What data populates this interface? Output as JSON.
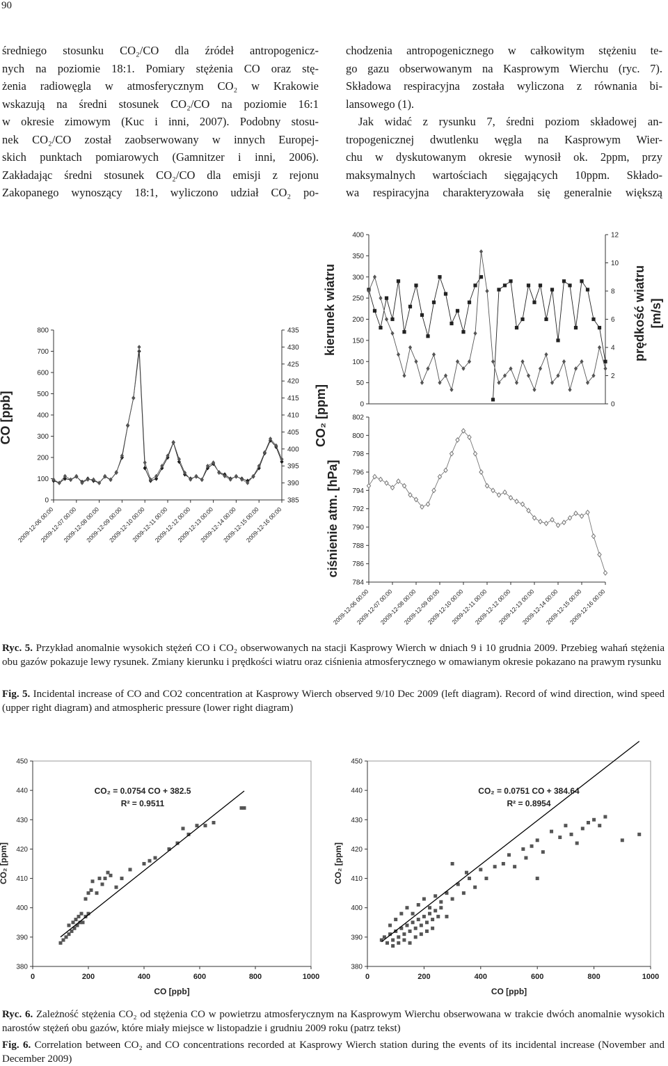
{
  "page_number": "90",
  "left_column": [
    "średniego stosunku CO₂/CO dla źródeł antropogenicz-",
    "nych na poziomie 18:1. Pomiary stężenia CO oraz stę-",
    "żenia radiowęgla w atmosferycznym CO₂ w Krakowie",
    "wskazują na średni stosunek CO₂/CO na poziomie 16:1",
    "w okresie zimowym (Kuc i inni, 2007). Podobny stosu-",
    "nek CO₂/CO został zaobserwowany w innych Europej-",
    "skich punktach pomiarowych (Gamnitzer i inni, 2006).",
    "Zakładając średni stosunek CO₂/CO dla emisji z rejonu",
    "Zakopanego wynoszący 18:1, wyliczono udział CO₂ po-"
  ],
  "right_column": [
    "chodzenia antropogenicznego w całkowitym stężeniu te-",
    "go gazu obserwowanym na Kasprowym Wierchu (ryc. 7).",
    "Składowa respiracyjna została wyliczona z równania bi-",
    "lansowego (1).",
    "Jak widać z rysunku 7, średni poziom składowej an-",
    "tropogenicznej dwutlenku węgla na Kasprowym Wier-",
    "chu w dyskutowanym okresie wynosił ok. 2ppm, przy",
    "maksymalnych wartościach sięgających 10ppm. Składo-",
    "wa respiracyjna charakteryzowała się generalnie większą"
  ],
  "figure5": {
    "pl_label": "Ryc. 5.",
    "pl_text": "Przykład anomalnie wysokich stężeń CO i CO₂ obserwowanych na stacji Kasprowy Wierch w dniach 9 i 10 grudnia 2009. Przebieg wahań stężenia obu gazów pokazuje lewy rysunek. Zmiany kierunku i prędkości wiatru oraz ciśnienia atmosferycznego w omawianym okresie pokazano na prawym rysunku",
    "en_label": "Fig. 5.",
    "en_text": "Incidental increase of CO and CO2 concentration at Kasprowy Wierch observed 9/10 Dec 2009 (left diagram). Record of wind direction, wind speed (upper right diagram) and atmospheric pressure (lower right diagram)"
  },
  "figure6": {
    "pl_label": "Ryc. 6.",
    "pl_text": "Zależność stężenia CO₂ od stężenia CO w powietrzu atmosferycznym na Kasprowym Wierchu obserwowana w trakcie dwóch anomalnie wysokich narostów stężeń obu gazów, które miały miejsce w listopadzie i grudniu 2009 roku (patrz tekst)",
    "en_label": "Fig. 6.",
    "en_text": "Correlation between CO₂ and CO concentrations recorded at Kasprowy Wierch station during the events of its incidental increase (November and December 2009)"
  },
  "chart_data": [
    {
      "type": "line",
      "y_label": "CO [ppb]",
      "y2_label": "CO₂ [ppm]",
      "x": [
        "2009-12-06 00:00",
        "2009-12-06 06:00",
        "2009-12-06 12:00",
        "2009-12-06 18:00",
        "2009-12-07 00:00",
        "2009-12-07 06:00",
        "2009-12-07 12:00",
        "2009-12-07 18:00",
        "2009-12-08 00:00",
        "2009-12-08 06:00",
        "2009-12-08 12:00",
        "2009-12-08 18:00",
        "2009-12-09 00:00",
        "2009-12-09 06:00",
        "2009-12-09 12:00",
        "2009-12-09 18:00",
        "2009-12-10 00:00",
        "2009-12-10 06:00",
        "2009-12-10 12:00",
        "2009-12-10 18:00",
        "2009-12-11 00:00",
        "2009-12-11 06:00",
        "2009-12-11 12:00",
        "2009-12-11 18:00",
        "2009-12-12 00:00",
        "2009-12-12 06:00",
        "2009-12-12 12:00",
        "2009-12-12 18:00",
        "2009-12-13 00:00",
        "2009-12-13 06:00",
        "2009-12-13 12:00",
        "2009-12-13 18:00",
        "2009-12-14 00:00",
        "2009-12-14 06:00",
        "2009-12-14 12:00",
        "2009-12-14 18:00",
        "2009-12-15 00:00",
        "2009-12-15 06:00",
        "2009-12-15 12:00",
        "2009-12-15 18:00",
        "2009-12-16 00:00"
      ],
      "xlim": [
        "2009-12-06 00:00",
        "2009-12-16 00:00"
      ],
      "xticks": [
        "2009-12-06 00:00",
        "2009-12-07 00:00",
        "2009-12-08 00:00",
        "2009-12-09 00:00",
        "2009-12-10 00:00",
        "2009-12-11 00:00",
        "2009-12-12 00:00",
        "2009-12-13 00:00",
        "2009-12-14 00:00",
        "2009-12-15 00:00",
        "2009-12-16 00:00"
      ],
      "ylim": [
        0,
        800
      ],
      "yticks": [
        0,
        100,
        200,
        300,
        400,
        500,
        600,
        700,
        800
      ],
      "y2lim": [
        385,
        435
      ],
      "y2ticks": [
        385,
        390,
        395,
        400,
        405,
        410,
        415,
        420,
        425,
        430,
        435
      ],
      "series": [
        {
          "color": "#1a1a1a",
          "marker": "diamond",
          "values": [
            90,
            80,
            100,
            95,
            110,
            85,
            100,
            90,
            80,
            110,
            95,
            130,
            200,
            350,
            480,
            700,
            150,
            90,
            100,
            150,
            200,
            270,
            180,
            120,
            100,
            110,
            95,
            150,
            170,
            130,
            120,
            100,
            110,
            100,
            90,
            110,
            150,
            220,
            280,
            250,
            180
          ]
        },
        {
          "color": "#555555",
          "marker": "diamond",
          "axis": "y2",
          "values": [
            391,
            390,
            392,
            391,
            392,
            390,
            391,
            391,
            390,
            392,
            391,
            393,
            398,
            407,
            415,
            430,
            396,
            391,
            392,
            395,
            398,
            402,
            397,
            393,
            391,
            392,
            391,
            395,
            396,
            393,
            392,
            391,
            392,
            391,
            390,
            392,
            395,
            399,
            403,
            401,
            397
          ]
        }
      ]
    },
    {
      "type": "line",
      "y_label": "kierunek wiatru",
      "y2_label": [
        "prędkość wiatru",
        "[m/s]"
      ],
      "x": [
        "2009-12-06 00:00",
        "2009-12-06 06:00",
        "2009-12-06 12:00",
        "2009-12-06 18:00",
        "2009-12-07 00:00",
        "2009-12-07 06:00",
        "2009-12-07 12:00",
        "2009-12-07 18:00",
        "2009-12-08 00:00",
        "2009-12-08 06:00",
        "2009-12-08 12:00",
        "2009-12-08 18:00",
        "2009-12-09 00:00",
        "2009-12-09 06:00",
        "2009-12-09 12:00",
        "2009-12-09 18:00",
        "2009-12-10 00:00",
        "2009-12-10 06:00",
        "2009-12-10 12:00",
        "2009-12-10 18:00",
        "2009-12-11 00:00",
        "2009-12-11 06:00",
        "2009-12-11 12:00",
        "2009-12-11 18:00",
        "2009-12-12 00:00",
        "2009-12-12 06:00",
        "2009-12-12 12:00",
        "2009-12-12 18:00",
        "2009-12-13 00:00",
        "2009-12-13 06:00",
        "2009-12-13 12:00",
        "2009-12-13 18:00",
        "2009-12-14 00:00",
        "2009-12-14 06:00",
        "2009-12-14 12:00",
        "2009-12-14 18:00",
        "2009-12-15 00:00",
        "2009-12-15 06:00",
        "2009-12-15 12:00",
        "2009-12-15 18:00",
        "2009-12-16 00:00"
      ],
      "xlim": [
        "2009-12-06 00:00",
        "2009-12-16 00:00"
      ],
      "ylim": [
        0,
        400
      ],
      "yticks": [
        0,
        50,
        100,
        150,
        200,
        250,
        300,
        350,
        400
      ],
      "y2lim": [
        0,
        12
      ],
      "y2ticks": [
        0,
        2,
        4,
        6,
        8,
        10,
        12
      ],
      "series": [
        {
          "color": "#222222",
          "marker": "square",
          "values": [
            270,
            220,
            180,
            250,
            200,
            290,
            170,
            230,
            280,
            210,
            160,
            240,
            300,
            260,
            190,
            220,
            170,
            240,
            280,
            300,
            null,
            10,
            270,
            280,
            290,
            180,
            200,
            280,
            240,
            280,
            200,
            270,
            150,
            290,
            280,
            180,
            290,
            270,
            200,
            180,
            100
          ]
        },
        {
          "color": "#555555",
          "marker": "diamond",
          "axis": "y2",
          "values": [
            8,
            9,
            7.5,
            6,
            5,
            3.5,
            2,
            4,
            3,
            1.5,
            2.5,
            3.5,
            1.5,
            2,
            1,
            3,
            2.5,
            3,
            5,
            10.8,
            8,
            3,
            1.5,
            2,
            2.5,
            1.5,
            3,
            2,
            1,
            2.5,
            3.5,
            1.5,
            2,
            3,
            1,
            2.5,
            3,
            1.5,
            2,
            4,
            2.5
          ]
        }
      ]
    },
    {
      "type": "line",
      "y_label": "ciśnienie atm. [hPa]",
      "x": [
        "2009-12-06 00:00",
        "2009-12-06 06:00",
        "2009-12-06 12:00",
        "2009-12-06 18:00",
        "2009-12-07 00:00",
        "2009-12-07 06:00",
        "2009-12-07 12:00",
        "2009-12-07 18:00",
        "2009-12-08 00:00",
        "2009-12-08 06:00",
        "2009-12-08 12:00",
        "2009-12-08 18:00",
        "2009-12-09 00:00",
        "2009-12-09 06:00",
        "2009-12-09 12:00",
        "2009-12-09 18:00",
        "2009-12-10 00:00",
        "2009-12-10 06:00",
        "2009-12-10 12:00",
        "2009-12-10 18:00",
        "2009-12-11 00:00",
        "2009-12-11 06:00",
        "2009-12-11 12:00",
        "2009-12-11 18:00",
        "2009-12-12 00:00",
        "2009-12-12 06:00",
        "2009-12-12 12:00",
        "2009-12-12 18:00",
        "2009-12-13 00:00",
        "2009-12-13 06:00",
        "2009-12-13 12:00",
        "2009-12-13 18:00",
        "2009-12-14 00:00",
        "2009-12-14 06:00",
        "2009-12-14 12:00",
        "2009-12-14 18:00",
        "2009-12-15 00:00",
        "2009-12-15 06:00",
        "2009-12-15 12:00",
        "2009-12-15 18:00",
        "2009-12-16 00:00"
      ],
      "xlim": [
        "2009-12-06 00:00",
        "2009-12-16 00:00"
      ],
      "xticks": [
        "2009-12-06 00:00",
        "2009-12-07 00:00",
        "2009-12-08 00:00",
        "2009-12-09 00:00",
        "2009-12-10 00:00",
        "2009-12-11 00:00",
        "2009-12-12 00:00",
        "2009-12-13 00:00",
        "2009-12-14 00:00",
        "2009-12-15 00:00",
        "2009-12-16 00:00"
      ],
      "ylim": [
        784,
        802
      ],
      "yticks": [
        784,
        786,
        788,
        790,
        792,
        794,
        796,
        798,
        800,
        802
      ],
      "series": [
        {
          "color": "#777777",
          "marker": "open-diamond",
          "values": [
            794.5,
            795.5,
            795.2,
            794.8,
            794.3,
            795,
            794.5,
            793.5,
            793,
            792.2,
            792.5,
            794,
            795.5,
            796.2,
            798,
            799.5,
            800.5,
            799.8,
            798,
            796,
            794.5,
            794,
            793.5,
            793.8,
            793.2,
            792.8,
            792.5,
            791.8,
            791,
            790.6,
            790.4,
            790.8,
            790.2,
            790.5,
            791,
            791.5,
            791.2,
            791.6,
            789,
            787,
            785
          ]
        }
      ]
    },
    {
      "type": "scatter",
      "x_label": "CO [ppb]",
      "y_label": "CO₂ [ppm]",
      "color": "#555555",
      "x": [
        100,
        110,
        120,
        130,
        140,
        150,
        160,
        170,
        180,
        190,
        200,
        145,
        155,
        165,
        175,
        130,
        190,
        200,
        210,
        215,
        230,
        240,
        250,
        260,
        270,
        280,
        300,
        320,
        350,
        400,
        420,
        440,
        490,
        520,
        540,
        560,
        590,
        620,
        650,
        750,
        760
      ],
      "values": [
        388,
        389,
        390,
        391,
        392,
        393,
        394,
        395,
        395,
        397,
        398,
        395,
        396,
        397,
        398,
        394,
        403,
        405,
        406,
        409,
        405,
        410,
        408,
        410,
        412,
        411,
        407,
        410,
        413,
        415,
        416,
        417,
        420,
        422,
        427,
        425,
        428,
        428,
        429,
        434,
        434
      ],
      "xlim": [
        0,
        1000
      ],
      "xticks": [
        0,
        200,
        400,
        600,
        800,
        1000
      ],
      "ylim": [
        380,
        450
      ],
      "yticks": [
        380,
        390,
        400,
        410,
        420,
        430,
        440,
        450
      ],
      "fit": {
        "slope": 0.0754,
        "intercept": 382.5,
        "label": "CO₂ = 0.0754 CO + 382.5",
        "r2_label": "R² = 0.9511"
      }
    },
    {
      "type": "scatter",
      "x_label": "CO [ppb]",
      "y_label": "CO₂ [ppm]",
      "color": "#555555",
      "x": [
        50,
        60,
        70,
        80,
        90,
        100,
        110,
        120,
        130,
        140,
        150,
        160,
        170,
        180,
        190,
        200,
        210,
        220,
        230,
        240,
        250,
        260,
        80,
        100,
        120,
        140,
        160,
        180,
        200,
        220,
        240,
        260,
        280,
        300,
        90,
        110,
        130,
        150,
        170,
        190,
        210,
        230,
        320,
        340,
        360,
        380,
        300,
        350,
        400,
        420,
        450,
        480,
        500,
        520,
        550,
        560,
        580,
        600,
        620,
        650,
        680,
        700,
        720,
        740,
        760,
        780,
        800,
        820,
        840,
        900,
        960,
        600,
        280
      ],
      "values": [
        389,
        390,
        388,
        391,
        389,
        392,
        390,
        393,
        391,
        394,
        392,
        395,
        393,
        396,
        394,
        397,
        395,
        398,
        396,
        399,
        397,
        400,
        394,
        396,
        398,
        400,
        398,
        401,
        403,
        400,
        404,
        402,
        405,
        403,
        387,
        388,
        389,
        388,
        390,
        391,
        392,
        393,
        408,
        405,
        410,
        407,
        415,
        412,
        413,
        410,
        414,
        415,
        418,
        414,
        420,
        417,
        421,
        423,
        419,
        426,
        424,
        428,
        425,
        422,
        427,
        429,
        430,
        428,
        431,
        423,
        425,
        410,
        397
      ],
      "xlim": [
        0,
        1000
      ],
      "xticks": [
        0,
        200,
        400,
        600,
        800,
        1000
      ],
      "ylim": [
        380,
        450
      ],
      "yticks": [
        380,
        390,
        400,
        410,
        420,
        430,
        440,
        450
      ],
      "fit": {
        "slope": 0.0751,
        "intercept": 384.64,
        "label": "CO₂ = 0.0751 CO + 384.64",
        "r2_label": "R² = 0.8954"
      }
    }
  ]
}
